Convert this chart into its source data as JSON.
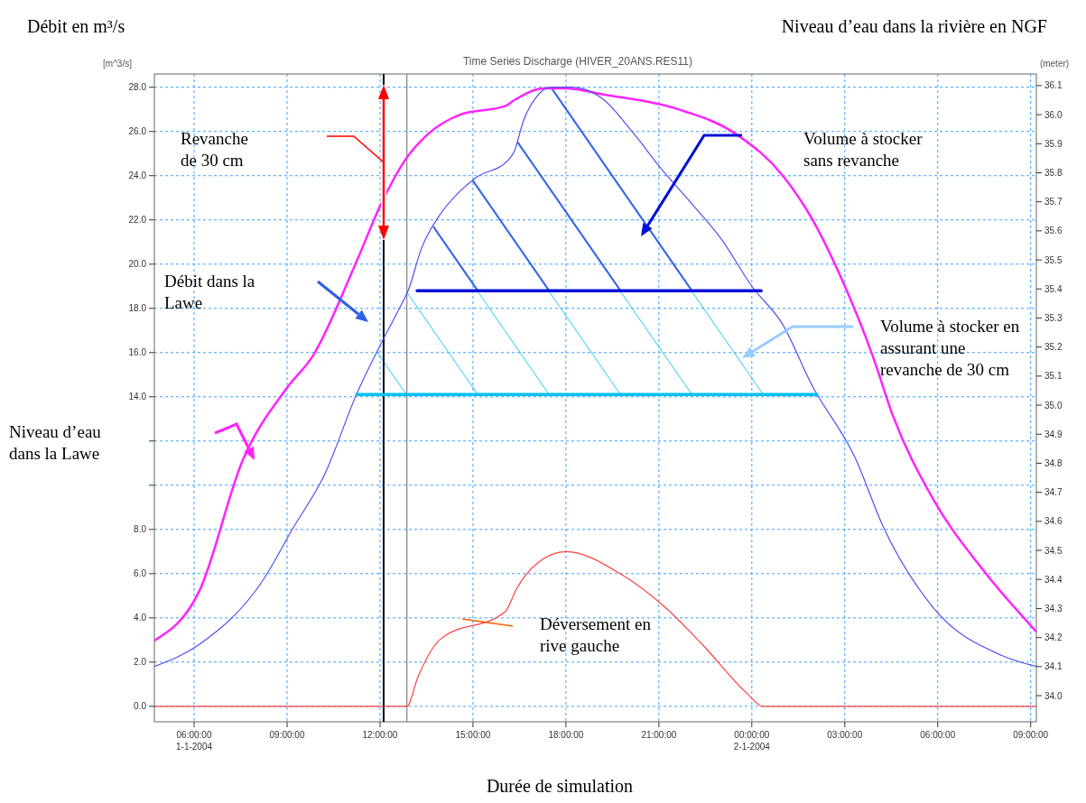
{
  "chart_data": {
    "type": "line",
    "title": "Time Series Discharge (HIVER_20ANS.RES11)",
    "ylabel": "Débit en m³/s",
    "y2label": "Niveau d’eau dans la rivière en NGF",
    "xlabel": "Durée de simulation",
    "xlim": [
      "2004-01-01T04:43",
      "2004-01-02T09:11"
    ],
    "xticks": [
      {
        "value": "2004-01-01T06:00",
        "label": "06:00:00 1-1-2004"
      },
      {
        "value": "2004-01-01T09:00",
        "label": "09:00:00"
      },
      {
        "value": "2004-01-01T12:00",
        "label": "12:00:00"
      },
      {
        "value": "2004-01-01T15:00",
        "label": "15:00:00"
      },
      {
        "value": "2004-01-01T18:00",
        "label": "18:00:00"
      },
      {
        "value": "2004-01-01T21:00",
        "label": "21:00:00"
      },
      {
        "value": "2004-01-02T00:00",
        "label": "00:00:00 2-1-2004"
      },
      {
        "value": "2004-01-02T03:00",
        "label": "03:00:00"
      },
      {
        "value": "2004-01-02T06:00",
        "label": "06:00:00"
      },
      {
        "value": "2004-01-02T09:00",
        "label": "09:00:00"
      }
    ],
    "ylim": [
      -0.7,
      28.6
    ],
    "yticks": [
      {
        "value": 0,
        "label": "0.0"
      },
      {
        "value": 2,
        "label": "2.0"
      },
      {
        "value": 4,
        "label": "4.0"
      },
      {
        "value": 6,
        "label": "6.0"
      },
      {
        "value": 8,
        "label": "8.0"
      },
      {
        "value": 10,
        "label": null
      },
      {
        "value": 12,
        "label": null
      },
      {
        "value": 14,
        "label": "14.0"
      },
      {
        "value": 16,
        "label": "16.0"
      },
      {
        "value": 18,
        "label": "18.0"
      },
      {
        "value": 20,
        "label": "20.0"
      },
      {
        "value": 22,
        "label": "22.0"
      },
      {
        "value": 24,
        "label": "24.0"
      },
      {
        "value": 26,
        "label": "26.0"
      },
      {
        "value": 28,
        "label": "28.0"
      }
    ],
    "y2lim": [
      33.91,
      36.14
    ],
    "y2ticks": [
      {
        "value": 34.0,
        "label": "34.0"
      },
      34.1,
      34.2,
      34.3,
      34.4,
      34.5,
      34.6,
      34.7,
      34.8,
      34.9,
      {
        "value": 35.0,
        "label": "35.0"
      },
      35.1,
      35.2,
      35.3,
      35.4,
      35.5,
      35.6,
      35.7,
      35.8,
      35.9,
      {
        "value": 36.0,
        "label": "36.0"
      },
      36.1
    ],
    "grid": true,
    "series": [
      {
        "color": "#ff22ff",
        "axis": "y2",
        "x": [
          "2004-01-01T04:43",
          "2004-01-01T06:10",
          "2004-01-01T07:34",
          "2004-01-01T09:00",
          "2004-01-01T09:50",
          "2004-01-01T11:11",
          "2004-01-01T12:04",
          "2004-01-01T12:51",
          "2004-01-01T13:31",
          "2004-01-01T14:35",
          "2004-01-01T16:03",
          "2004-01-01T16:20",
          "2004-01-01T17:18",
          "2004-01-01T18:00",
          "2004-01-01T19:10",
          "2004-01-01T21:35",
          "2004-01-01T23:32",
          "2004-01-02T01:00",
          "2004-01-02T01:57",
          "2004-01-02T02:55",
          "2004-01-02T03:54",
          "2004-01-02T04:34",
          "2004-01-02T05:50",
          "2004-01-02T07:29",
          "2004-01-02T09:11"
        ],
        "values": [
          34.19,
          34.36,
          34.81,
          35.06,
          35.17,
          35.48,
          35.7,
          35.85,
          35.93,
          36.0,
          36.03,
          36.05,
          36.09,
          36.09,
          36.07,
          36.02,
          35.93,
          35.79,
          35.64,
          35.43,
          35.17,
          34.96,
          34.68,
          34.43,
          34.22
        ]
      },
      {
        "color": "#5050f0",
        "x": [
          "2004-01-01T04:43",
          "2004-01-01T06:10",
          "2004-01-01T08:16",
          "2004-01-01T09:10",
          "2004-01-01T10:13",
          "2004-01-01T11:16",
          "2004-01-01T12:04",
          "2004-01-01T12:33",
          "2004-01-01T12:56",
          "2004-01-01T13:20",
          "2004-01-01T13:55",
          "2004-01-01T14:35",
          "2004-01-01T15:05",
          "2004-01-01T16:08",
          "2004-01-01T16:20",
          "2004-01-01T16:38",
          "2004-01-01T17:01",
          "2004-01-01T17:30",
          "2004-01-01T18:11",
          "2004-01-01T19:10",
          "2004-01-01T20:08",
          "2004-01-01T21:05",
          "2004-01-01T22:05",
          "2004-01-01T23:02",
          "2004-01-02T00:00",
          "2004-01-02T00:59",
          "2004-01-02T01:57",
          "2004-01-02T03:21",
          "2004-01-02T04:13",
          "2004-01-02T05:50",
          "2004-01-02T08:04",
          "2004-01-02T09:11"
        ],
        "values": [
          1.8,
          2.8,
          5.8,
          8.0,
          10.5,
          14.2,
          16.5,
          17.8,
          18.9,
          20.7,
          22.2,
          23.3,
          23.9,
          24.7,
          25.1,
          26.5,
          27.5,
          28.0,
          28.0,
          27.5,
          26.0,
          24.3,
          22.7,
          21.1,
          19.0,
          17.3,
          14.5,
          11.2,
          8.2,
          4.5,
          2.3,
          1.8
        ]
      },
      {
        "color": "#ff4040",
        "x": [
          "2004-01-01T04:43",
          "2004-01-01T12:52",
          "2004-01-01T13:13",
          "2004-01-01T13:55",
          "2004-01-01T16:03",
          "2004-01-01T16:24",
          "2004-01-01T17:06",
          "2004-01-01T18:00",
          "2004-01-01T19:45",
          "2004-01-01T21:11",
          "2004-01-01T22:24",
          "2004-01-01T23:50",
          "2004-01-02T00:21",
          "2004-01-02T09:11"
        ],
        "values": [
          0,
          0,
          1.3,
          3.0,
          4.3,
          5.3,
          6.5,
          7.0,
          6.0,
          4.5,
          2.8,
          0.6,
          0,
          0
        ]
      },
      {
        "color": "#00c0f0",
        "x": [
          "2004-01-01T11:15",
          "2004-01-02T02:06"
        ],
        "values": [
          14.1,
          14.1
        ]
      },
      {
        "color": "#0010d8",
        "x": [
          "2004-01-01T13:12",
          "2004-01-02T00:18"
        ],
        "values": [
          18.8,
          18.8
        ]
      }
    ],
    "ref_lines": [
      {
        "axis": "x",
        "value": "2004-01-01T12:07",
        "color": "#000000"
      },
      {
        "axis": "x",
        "value": "2004-01-01T12:52",
        "color": "#808080"
      }
    ],
    "annotations": [
      "[m^3/s]",
      "(meter)",
      "Revanche de 30 cm",
      "Débit dans la Lawe",
      "Niveau d’eau dans la Lawe",
      "Volume à stocker sans revanche",
      "Volume à stocker en assurant une revanche de 30 cm",
      "Déversement en rive gauche"
    ]
  }
}
